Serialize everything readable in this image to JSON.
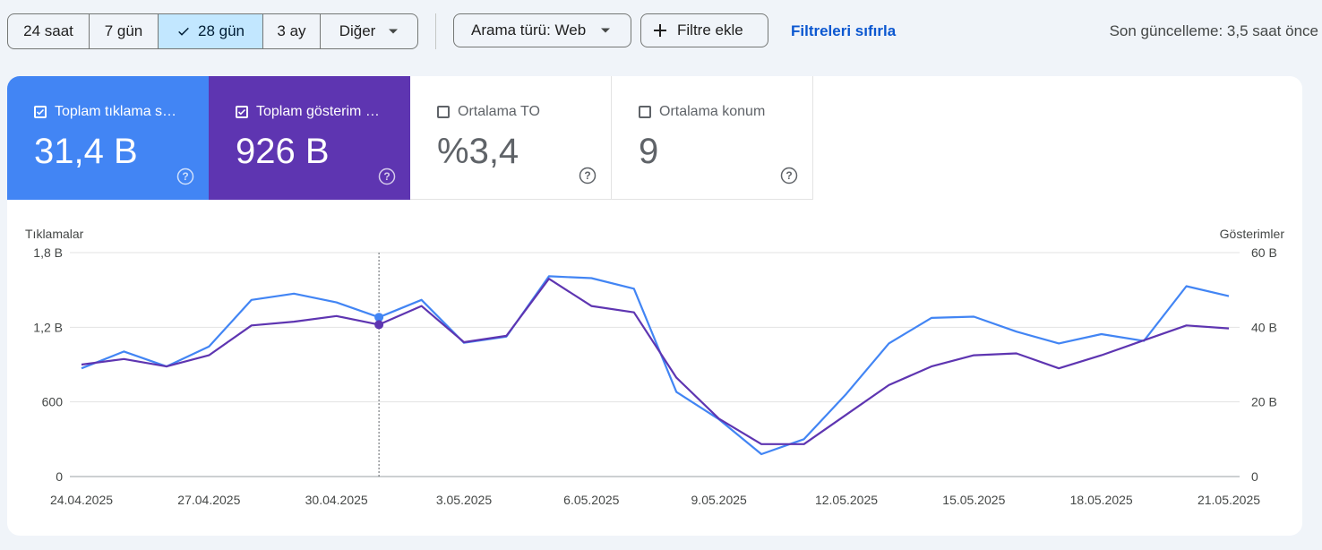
{
  "toolbar": {
    "ranges": [
      "24 saat",
      "7 gün",
      "28 gün",
      "3 ay",
      "Diğer"
    ],
    "selected_range": "28 gün",
    "search_type_label": "Arama türü: Web",
    "add_filter_label": "Filtre ekle",
    "reset_filters_label": "Filtreleri sıfırla",
    "last_updated": "Son güncelleme: 3,5 saat önce"
  },
  "metrics": [
    {
      "label": "Toplam tıklama s…",
      "value": "31,4 B",
      "checked": true,
      "color": "#4285f4"
    },
    {
      "label": "Toplam gösterim …",
      "value": "926 B",
      "checked": true,
      "color": "#5e35b1"
    },
    {
      "label": "Ortalama TO",
      "value": "%3,4",
      "checked": false,
      "color": "#ffffff"
    },
    {
      "label": "Ortalama konum",
      "value": "9",
      "checked": false,
      "color": "#ffffff"
    }
  ],
  "icons": {
    "check": "check-icon",
    "dropdown": "chevron-down-icon",
    "add": "plus-icon",
    "help": "help-circle-icon"
  },
  "chart_data": {
    "type": "line",
    "ylabel_left": "Tıklamalar",
    "ylabel_right": "Gösterimler",
    "y_left_ticks": [
      "0",
      "600",
      "1,2 B",
      "1,8 B"
    ],
    "y_right_ticks": [
      "0",
      "20 B",
      "40 B",
      "60 B"
    ],
    "y_left_range": [
      0,
      1800
    ],
    "y_right_range": [
      0,
      60000
    ],
    "x_tick_labels": [
      "24.04.2025",
      "27.04.2025",
      "30.04.2025",
      "3.05.2025",
      "6.05.2025",
      "9.05.2025",
      "12.05.2025",
      "15.05.2025",
      "18.05.2025",
      "21.05.2025"
    ],
    "x": [
      "24.04.2025",
      "25.04.2025",
      "26.04.2025",
      "27.04.2025",
      "28.04.2025",
      "29.04.2025",
      "30.04.2025",
      "1.05.2025",
      "2.05.2025",
      "3.05.2025",
      "4.05.2025",
      "5.05.2025",
      "6.05.2025",
      "7.05.2025",
      "8.05.2025",
      "9.05.2025",
      "10.05.2025",
      "11.05.2025",
      "12.05.2025",
      "13.05.2025",
      "14.05.2025",
      "15.05.2025",
      "16.05.2025",
      "17.05.2025",
      "18.05.2025",
      "19.05.2025",
      "20.05.2025",
      "21.05.2025"
    ],
    "hover_index": 7,
    "series": [
      {
        "color": "#4285f4",
        "axis": "left",
        "values": [
          870,
          1005,
          885,
          1045,
          1420,
          1470,
          1400,
          1280,
          1420,
          1075,
          1125,
          1610,
          1595,
          1510,
          680,
          460,
          180,
          300,
          665,
          1070,
          1275,
          1285,
          1165,
          1070,
          1145,
          1090,
          1530,
          1450
        ]
      },
      {
        "color": "#5e35b1",
        "axis": "right",
        "values": [
          30000,
          31500,
          29500,
          32500,
          40500,
          41500,
          43000,
          40700,
          45700,
          36000,
          37700,
          53000,
          45700,
          44000,
          26500,
          15500,
          8700,
          8700,
          16600,
          24500,
          29500,
          32500,
          33000,
          29000,
          32500,
          36500,
          40500,
          39700
        ]
      }
    ]
  }
}
